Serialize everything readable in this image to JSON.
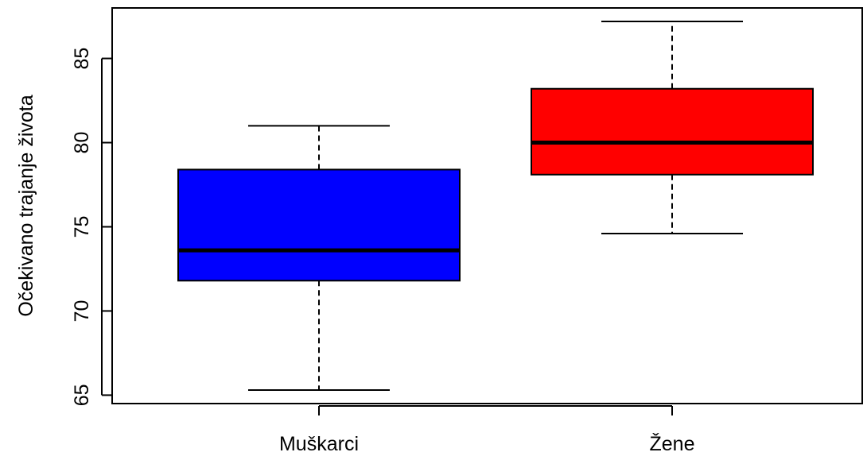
{
  "chart_data": {
    "type": "boxplot",
    "title": "",
    "xlabel": "",
    "ylabel": "Očekivano trajanje života",
    "categories": [
      "Muškarci",
      "Žene"
    ],
    "boxes": [
      {
        "category": "Muškarci",
        "min": 65.3,
        "q1": 71.8,
        "median": 73.6,
        "q3": 78.4,
        "max": 81.0,
        "color": "#0000ff"
      },
      {
        "category": "Žene",
        "min": 74.6,
        "q1": 78.1,
        "median": 80.0,
        "q3": 83.2,
        "max": 87.2,
        "color": "#ff0000"
      }
    ],
    "ylim": [
      64.5,
      88.0
    ],
    "yticks": [
      65,
      70,
      75,
      80,
      85
    ],
    "grid": false,
    "legend": "none"
  }
}
